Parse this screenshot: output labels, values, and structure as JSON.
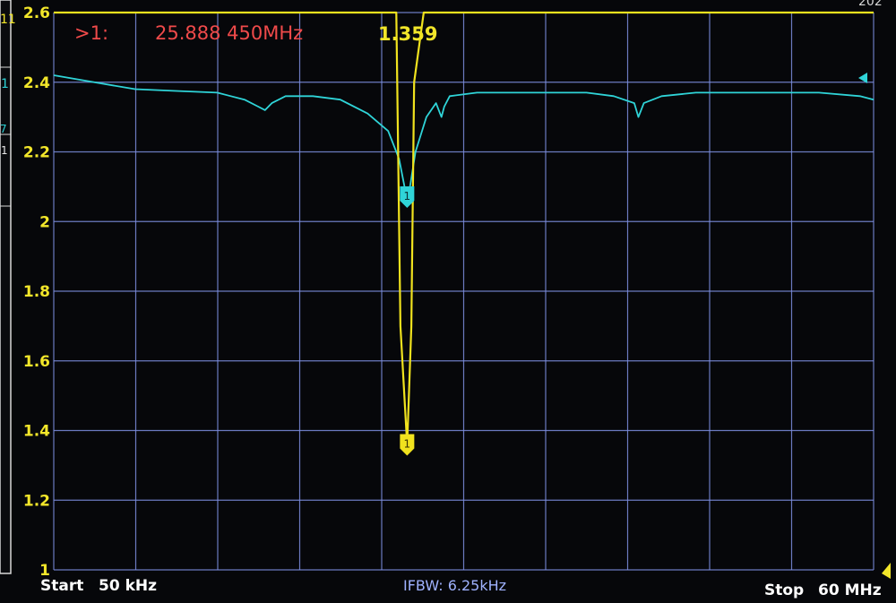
{
  "header": {
    "marker_label": ">1:",
    "marker_freq": "25.888 450MHz",
    "marker_value": "1.359",
    "corner_partial": "202"
  },
  "footer": {
    "start_label": "Start",
    "start_value": "50 kHz",
    "ifbw": "IFBW: 6.25kHz",
    "stop_label": "Stop",
    "stop_value": "60 MHz"
  },
  "left_strip": {
    "labels": [
      "11",
      "1",
      "7",
      "1"
    ]
  },
  "colors": {
    "trace1": "#2fd4d8",
    "trace2": "#f0e21e",
    "grid": "#7d8fe0",
    "marker_text": "#ef4a4a"
  },
  "chart_data": {
    "type": "line",
    "title": "",
    "xlabel": "",
    "ylabel": "",
    "x_start_mhz": 0.05,
    "x_stop_mhz": 60,
    "ylim": [
      1,
      2.6
    ],
    "yticks": [
      "2.6",
      "2.4",
      "2.2",
      "2",
      "1.8",
      "1.6",
      "1.4",
      "1.2",
      "1"
    ],
    "ytick_values": [
      2.6,
      2.4,
      2.2,
      2.0,
      1.8,
      1.6,
      1.4,
      1.2,
      1.0
    ],
    "grid": true,
    "markers": [
      {
        "id": "1",
        "x": 25.888,
        "y_cyan": 2.07,
        "y_yellow": 1.359
      }
    ],
    "series": [
      {
        "color": "cyan",
        "x": [
          0.05,
          3,
          6,
          9,
          12,
          14,
          15,
          15.5,
          16,
          17,
          19,
          21,
          23,
          24.5,
          25.3,
          25.7,
          25.888,
          26.1,
          26.5,
          27.3,
          28,
          28.4,
          28.6,
          29,
          31,
          34,
          37,
          39,
          41,
          42.5,
          42.8,
          43.2,
          44.5,
          47,
          51,
          56,
          59,
          60
        ],
        "y": [
          2.42,
          2.4,
          2.38,
          2.375,
          2.37,
          2.35,
          2.33,
          2.32,
          2.34,
          2.36,
          2.36,
          2.35,
          2.31,
          2.26,
          2.18,
          2.1,
          2.07,
          2.1,
          2.2,
          2.3,
          2.34,
          2.3,
          2.33,
          2.36,
          2.37,
          2.37,
          2.37,
          2.37,
          2.36,
          2.34,
          2.3,
          2.34,
          2.36,
          2.37,
          2.37,
          2.37,
          2.36,
          2.35
        ]
      },
      {
        "color": "yellow",
        "x": [
          0.05,
          25.0,
          25.1,
          25.4,
          25.888,
          26.2,
          26.4,
          27.1,
          27.2,
          60
        ],
        "y": [
          2.6,
          2.6,
          2.6,
          1.7,
          1.359,
          1.7,
          2.4,
          2.6,
          2.6,
          2.6
        ]
      }
    ]
  }
}
